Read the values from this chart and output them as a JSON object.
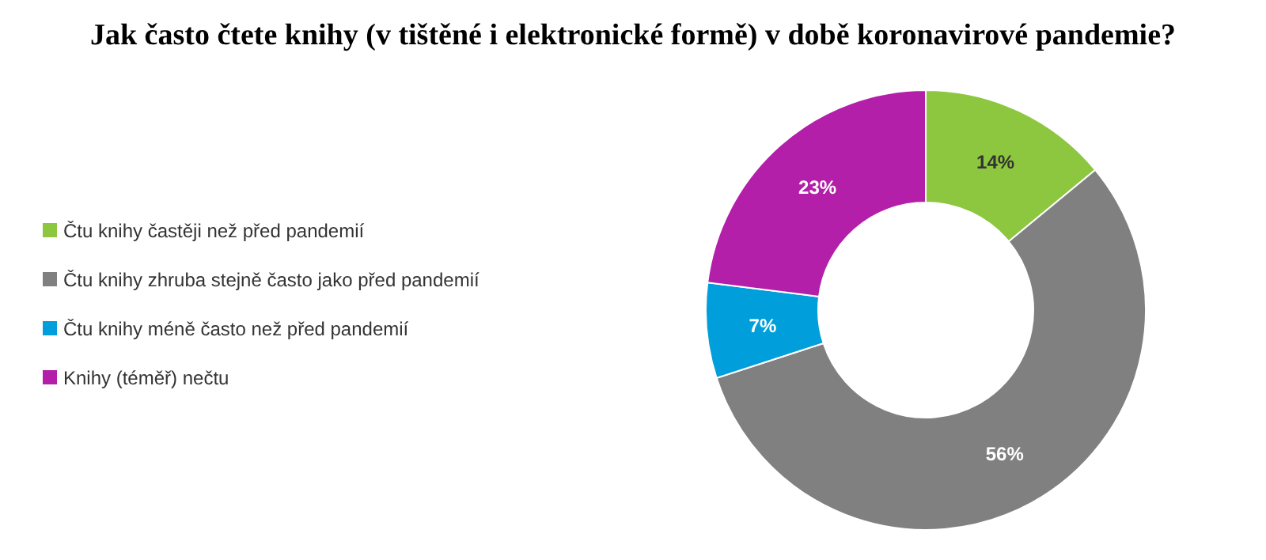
{
  "chart_data": {
    "type": "donut",
    "title": "Jak často čtete knihy (v tištěné i elektronické formě) v době koronavirové pandemie?",
    "categories": [
      "Čtu knihy častěji než před pandemií",
      "Čtu knihy zhruba stejně často jako před pandemií",
      "Čtu knihy méně často než před pandemií",
      "Knihy (téměř) nečtu"
    ],
    "values": [
      14,
      56,
      7,
      23
    ],
    "colors": [
      "#8dc63f",
      "#808080",
      "#009fdb",
      "#b31fa9"
    ],
    "value_labels": [
      "14%",
      "56%",
      "7%",
      "23%"
    ],
    "legend": "left"
  }
}
